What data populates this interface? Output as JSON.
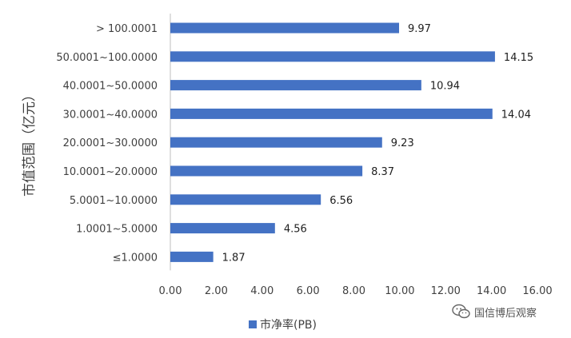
{
  "chart_data": {
    "type": "bar",
    "orientation": "horizontal",
    "categories": [
      "> 100.0001",
      "50.0001~100.0000",
      "40.0001~50.0000",
      "30.0001~40.0000",
      "20.0001~30.0000",
      "10.0001~20.0000",
      "5.0001~10.0000",
      "1.0001~5.0000",
      "≤1.0000"
    ],
    "series": [
      {
        "name": "市净率(PB)",
        "values": [
          9.97,
          14.15,
          10.94,
          14.04,
          9.23,
          8.37,
          6.56,
          4.56,
          1.87
        ],
        "labels": [
          "9.97",
          "14.15",
          "10.94",
          "14.04",
          "9.23",
          "8.37",
          "6.56",
          "4.56",
          "1.87"
        ]
      }
    ],
    "ylabel": "市值范围（亿元）",
    "xlabel": "",
    "xlim": [
      0,
      16
    ],
    "xticks": [
      "0.00",
      "2.00",
      "4.00",
      "6.00",
      "8.00",
      "10.00",
      "12.00",
      "14.00",
      "16.00"
    ],
    "grid": false,
    "legend": "bottom",
    "bar_color": "#4472C4"
  },
  "watermark": {
    "text": "国信博后观察"
  }
}
